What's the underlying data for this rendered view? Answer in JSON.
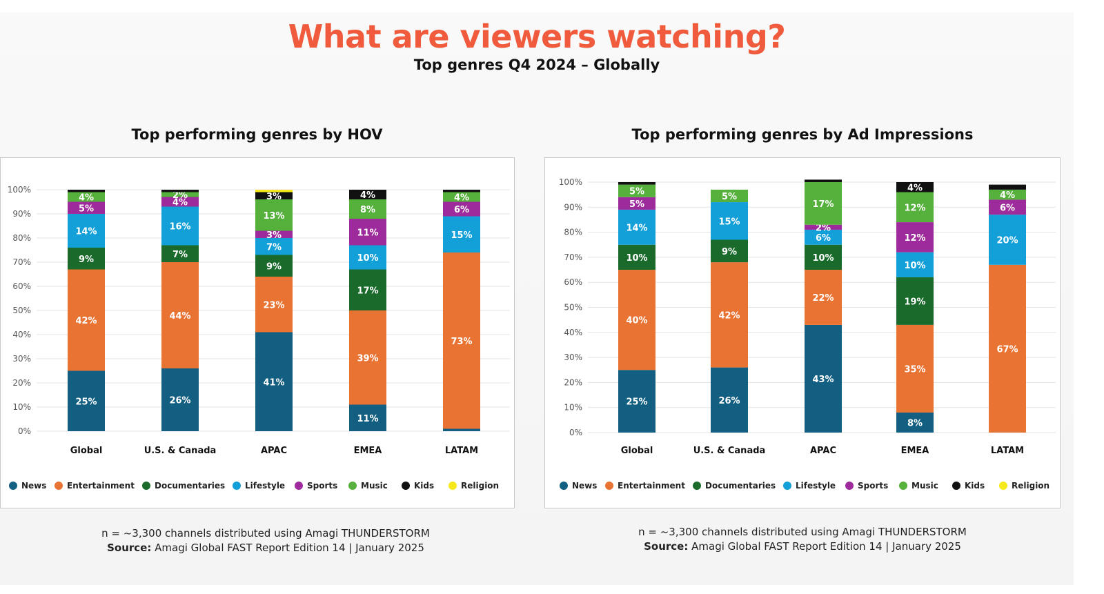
{
  "header": {
    "title": "What are viewers watching?",
    "subtitle": "Top genres Q4 2024 – Globally"
  },
  "genres": [
    {
      "name": "News",
      "color": "#135f82"
    },
    {
      "name": "Entertainment",
      "color": "#e97332"
    },
    {
      "name": "Documentaries",
      "color": "#1a6b2b"
    },
    {
      "name": "Lifestyle",
      "color": "#13a0d8"
    },
    {
      "name": "Sports",
      "color": "#9d2b9b"
    },
    {
      "name": "Music",
      "color": "#56b13c"
    },
    {
      "name": "Kids",
      "color": "#111111"
    },
    {
      "name": "Religion",
      "color": "#f5e91a"
    }
  ],
  "chart_data": [
    {
      "type": "bar",
      "stacked": true,
      "title": "Top performing genres by HOV",
      "categories": [
        "Global",
        "U.S. & Canada",
        "APAC",
        "EMEA",
        "LATAM"
      ],
      "y_ticks": [
        "0%",
        "10%",
        "20%",
        "30%",
        "40%",
        "50%",
        "60%",
        "70%",
        "80%",
        "90%",
        "100%"
      ],
      "ylim": [
        0,
        100
      ],
      "grid": true,
      "legend": "bottom",
      "series": [
        {
          "name": "News",
          "values": [
            25,
            26,
            41,
            11,
            1
          ]
        },
        {
          "name": "Entertainment",
          "values": [
            42,
            44,
            23,
            39,
            73
          ]
        },
        {
          "name": "Documentaries",
          "values": [
            9,
            7,
            9,
            17,
            0
          ]
        },
        {
          "name": "Lifestyle",
          "values": [
            14,
            16,
            7,
            10,
            15
          ]
        },
        {
          "name": "Sports",
          "values": [
            5,
            4,
            3,
            11,
            6
          ]
        },
        {
          "name": "Music",
          "values": [
            4,
            2,
            13,
            8,
            4
          ]
        },
        {
          "name": "Kids",
          "values": [
            1,
            1,
            3,
            4,
            1
          ]
        },
        {
          "name": "Religion",
          "values": [
            0,
            0,
            1,
            0,
            0
          ]
        }
      ],
      "labels": [
        [
          "25%",
          "26%",
          "41%",
          "11%",
          ""
        ],
        [
          "42%",
          "44%",
          "23%",
          "39%",
          "73%"
        ],
        [
          "9%",
          "7%",
          "9%",
          "17%",
          ""
        ],
        [
          "14%",
          "16%",
          "7%",
          "10%",
          "15%"
        ],
        [
          "5%",
          "4%",
          "3%",
          "11%",
          "6%"
        ],
        [
          "4%",
          "2%",
          "13%",
          "8%",
          "4%"
        ],
        [
          "",
          "",
          "3%",
          "4%",
          ""
        ],
        [
          "",
          "",
          "",
          "",
          ""
        ]
      ]
    },
    {
      "type": "bar",
      "stacked": true,
      "title": "Top performing genres by Ad Impressions",
      "categories": [
        "Global",
        "U.S. & Canada",
        "APAC",
        "EMEA",
        "LATAM"
      ],
      "y_ticks": [
        "0%",
        "10%",
        "20%",
        "30%",
        "40%",
        "50%",
        "60%",
        "70%",
        "80%",
        "90%",
        "100%"
      ],
      "ylim": [
        0,
        100
      ],
      "grid": true,
      "legend": "bottom",
      "series": [
        {
          "name": "News",
          "values": [
            25,
            26,
            43,
            8,
            0
          ]
        },
        {
          "name": "Entertainment",
          "values": [
            40,
            42,
            22,
            35,
            67
          ]
        },
        {
          "name": "Documentaries",
          "values": [
            10,
            9,
            10,
            19,
            0
          ]
        },
        {
          "name": "Lifestyle",
          "values": [
            14,
            15,
            6,
            10,
            20
          ]
        },
        {
          "name": "Sports",
          "values": [
            5,
            0,
            2,
            12,
            6
          ]
        },
        {
          "name": "Music",
          "values": [
            5,
            5,
            17,
            12,
            4
          ]
        },
        {
          "name": "Kids",
          "values": [
            1,
            0,
            1,
            4,
            2
          ]
        },
        {
          "name": "Religion",
          "values": [
            0,
            0,
            0,
            0,
            0
          ]
        }
      ],
      "labels": [
        [
          "25%",
          "26%",
          "43%",
          "8%",
          ""
        ],
        [
          "40%",
          "42%",
          "22%",
          "35%",
          "67%"
        ],
        [
          "10%",
          "9%",
          "10%",
          "19%",
          ""
        ],
        [
          "14%",
          "15%",
          "6%",
          "10%",
          "20%"
        ],
        [
          "5%",
          "",
          "2%",
          "12%",
          "6%"
        ],
        [
          "5%",
          "5%",
          "17%",
          "12%",
          "4%"
        ],
        [
          "",
          "",
          "",
          "4%",
          ""
        ],
        [
          "",
          "",
          "",
          "",
          ""
        ]
      ]
    }
  ],
  "footnotes": [
    {
      "line1": "n = ~3,300 channels distributed using Amagi THUNDERSTORM",
      "source_label": "Source:",
      "source_text": "Amagi Global FAST Report Edition 14 | January 2025"
    },
    {
      "line1": "n = ~3,300 channels distributed using Amagi THUNDERSTORM",
      "source_label": "Source:",
      "source_text": "Amagi Global FAST Report Edition 14 | January 2025"
    }
  ]
}
